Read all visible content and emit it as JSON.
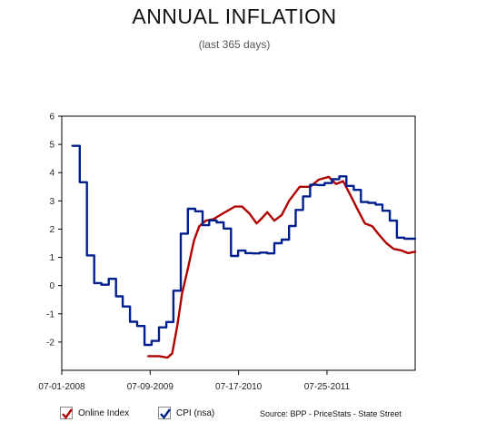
{
  "title": "ANNUAL INFLATION",
  "subtitle": "(last 365 days)",
  "source": "Source: BPP - PriceStats - State Street",
  "legend": [
    {
      "label": "Online Index",
      "color": "#b00000"
    },
    {
      "label": "CPI (nsa)",
      "color": "#001f8f"
    }
  ],
  "chart_data": {
    "type": "line",
    "title": "ANNUAL INFLATION",
    "subtitle": "(last 365 days)",
    "xlabel": "",
    "ylabel": "",
    "x_ticks": [
      "07-01-2008",
      "07-09-2009",
      "07-17-2010",
      "07-25-2011"
    ],
    "x_tick_dates": [
      "2008-07-01",
      "2009-07-09",
      "2010-07-17",
      "2011-07-25"
    ],
    "xlim": [
      "2008-07-01",
      "2012-07-31"
    ],
    "ylim": [
      -3,
      6
    ],
    "y_ticks": [
      -2,
      -1,
      0,
      1,
      2,
      3,
      4,
      5,
      6
    ],
    "grid": false,
    "legend_position": "bottom-left",
    "series": [
      {
        "name": "Online Index",
        "color": "#b00000",
        "style": "smooth",
        "points": [
          [
            "2009-07-01",
            -2.5
          ],
          [
            "2009-08-15",
            -2.5
          ],
          [
            "2009-09-20",
            -2.55
          ],
          [
            "2009-10-10",
            -2.4
          ],
          [
            "2009-11-01",
            -1.4
          ],
          [
            "2009-11-20",
            -0.3
          ],
          [
            "2009-12-15",
            0.6
          ],
          [
            "2010-01-10",
            1.6
          ],
          [
            "2010-02-01",
            2.1
          ],
          [
            "2010-03-01",
            2.3
          ],
          [
            "2010-04-01",
            2.35
          ],
          [
            "2010-05-01",
            2.5
          ],
          [
            "2010-06-01",
            2.65
          ],
          [
            "2010-07-01",
            2.8
          ],
          [
            "2010-08-01",
            2.8
          ],
          [
            "2010-09-01",
            2.55
          ],
          [
            "2010-10-01",
            2.2
          ],
          [
            "2010-10-25",
            2.4
          ],
          [
            "2010-11-15",
            2.6
          ],
          [
            "2010-12-15",
            2.3
          ],
          [
            "2011-01-15",
            2.5
          ],
          [
            "2011-02-15",
            3.0
          ],
          [
            "2011-04-01",
            3.5
          ],
          [
            "2011-05-15",
            3.5
          ],
          [
            "2011-06-20",
            3.75
          ],
          [
            "2011-08-01",
            3.85
          ],
          [
            "2011-09-01",
            3.6
          ],
          [
            "2011-10-01",
            3.7
          ],
          [
            "2011-11-01",
            3.2
          ],
          [
            "2011-12-01",
            2.7
          ],
          [
            "2012-01-01",
            2.2
          ],
          [
            "2012-02-01",
            2.1
          ],
          [
            "2012-03-01",
            1.8
          ],
          [
            "2012-04-01",
            1.5
          ],
          [
            "2012-05-01",
            1.3
          ],
          [
            "2012-06-01",
            1.25
          ],
          [
            "2012-07-01",
            1.15
          ],
          [
            "2012-07-31",
            1.2
          ]
        ]
      },
      {
        "name": "CPI (nsa)",
        "color": "#001f8f",
        "style": "step",
        "points": [
          [
            "2008-08-15",
            4.95
          ],
          [
            "2008-09-15",
            3.66
          ],
          [
            "2008-10-15",
            1.07
          ],
          [
            "2008-11-15",
            0.09
          ],
          [
            "2008-12-15",
            0.03
          ],
          [
            "2009-01-15",
            0.24
          ],
          [
            "2009-02-15",
            -0.38
          ],
          [
            "2009-03-15",
            -0.74
          ],
          [
            "2009-04-15",
            -1.28
          ],
          [
            "2009-05-15",
            -1.43
          ],
          [
            "2009-06-15",
            -2.1
          ],
          [
            "2009-07-15",
            -1.96
          ],
          [
            "2009-08-15",
            -1.48
          ],
          [
            "2009-09-15",
            -1.29
          ],
          [
            "2009-10-15",
            -0.18
          ],
          [
            "2009-11-15",
            1.84
          ],
          [
            "2009-12-15",
            2.72
          ],
          [
            "2010-01-15",
            2.63
          ],
          [
            "2010-02-15",
            2.14
          ],
          [
            "2010-03-15",
            2.31
          ],
          [
            "2010-04-15",
            2.24
          ],
          [
            "2010-05-15",
            2.02
          ],
          [
            "2010-06-15",
            1.05
          ],
          [
            "2010-07-15",
            1.24
          ],
          [
            "2010-08-15",
            1.15
          ],
          [
            "2010-09-15",
            1.14
          ],
          [
            "2010-10-15",
            1.17
          ],
          [
            "2010-11-15",
            1.14
          ],
          [
            "2010-12-15",
            1.5
          ],
          [
            "2011-01-15",
            1.63
          ],
          [
            "2011-02-15",
            2.11
          ],
          [
            "2011-03-15",
            2.68
          ],
          [
            "2011-04-15",
            3.16
          ],
          [
            "2011-05-15",
            3.57
          ],
          [
            "2011-06-15",
            3.56
          ],
          [
            "2011-07-15",
            3.63
          ],
          [
            "2011-08-15",
            3.77
          ],
          [
            "2011-09-15",
            3.87
          ],
          [
            "2011-10-15",
            3.53
          ],
          [
            "2011-11-15",
            3.39
          ],
          [
            "2011-12-15",
            2.96
          ],
          [
            "2012-01-15",
            2.93
          ],
          [
            "2012-02-15",
            2.87
          ],
          [
            "2012-03-15",
            2.65
          ],
          [
            "2012-04-15",
            2.3
          ],
          [
            "2012-05-15",
            1.7
          ],
          [
            "2012-06-15",
            1.66
          ],
          [
            "2012-07-31",
            1.66
          ]
        ]
      }
    ]
  }
}
